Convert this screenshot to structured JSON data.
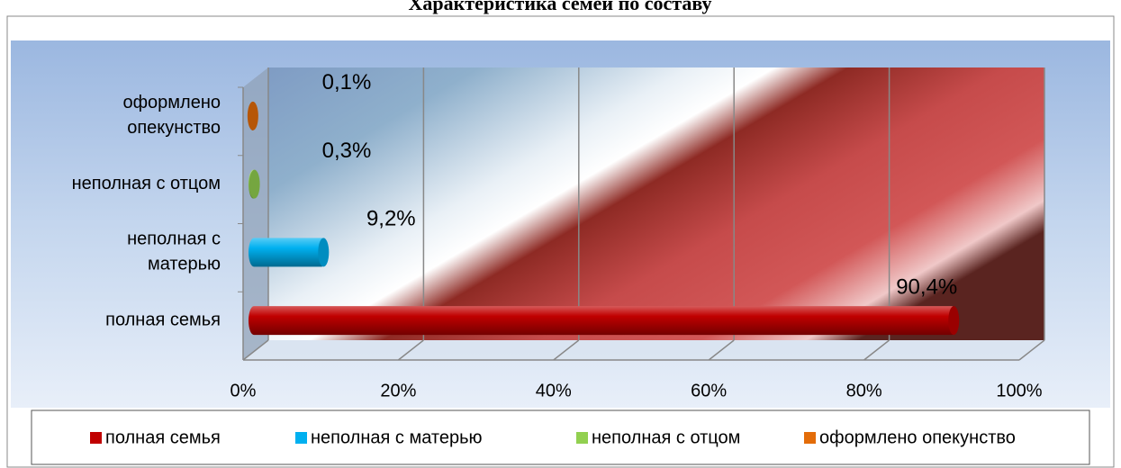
{
  "chart_data": {
    "type": "bar3d_horizontal",
    "title": "Характеристика семей по составу",
    "categories": [
      "полная семья",
      "неполная с матерью",
      "неполная с отцом",
      "оформлено опекунство"
    ],
    "display_categories": [
      [
        "полная семья"
      ],
      [
        "неполная с",
        "матерью"
      ],
      [
        "неполная с отцом"
      ],
      [
        "оформлено",
        "опекунство"
      ]
    ],
    "values": [
      90.4,
      9.2,
      0.3,
      0.1
    ],
    "value_labels": [
      "90,4%",
      "9,2%",
      "0,3%",
      "0,1%"
    ],
    "colors": [
      "#c00000",
      "#00b0f0",
      "#92d050",
      "#e36c09"
    ],
    "xlim": [
      0,
      100
    ],
    "xticks": [
      {
        "value": 0,
        "label": "0%"
      },
      {
        "value": 20,
        "label": "20%"
      },
      {
        "value": 40,
        "label": "40%"
      },
      {
        "value": 60,
        "label": "60%"
      },
      {
        "value": 80,
        "label": "80%"
      },
      {
        "value": 100,
        "label": "100%"
      }
    ],
    "grid": true,
    "legend": "bottom"
  }
}
